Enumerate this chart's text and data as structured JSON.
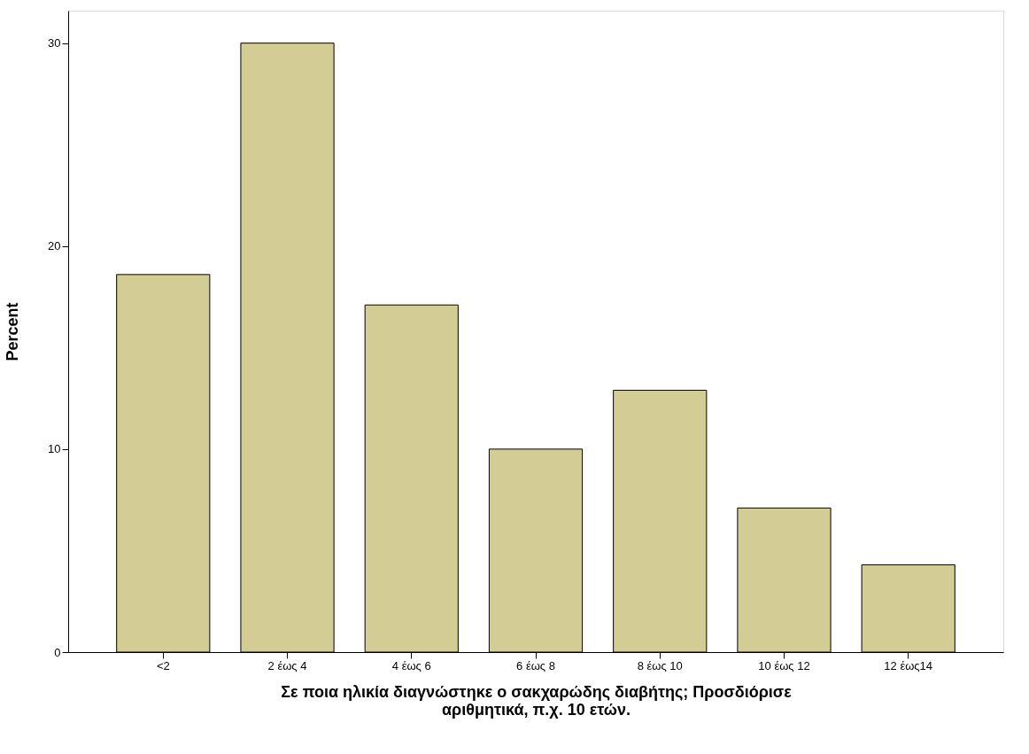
{
  "chart_data": {
    "type": "bar",
    "categories": [
      "<2",
      "2 έως 4",
      "4 έως 6",
      "6 έως 8",
      "8 έως 10",
      "10 έως 12",
      "12 έως14"
    ],
    "values": [
      18.6,
      30,
      17.1,
      10,
      12.9,
      7.1,
      4.3
    ],
    "color": "#d3cd95",
    "xlabel": "Σε ποια ηλικία διαγνώστηκε ο σακχαρώδης διαβήτης; Προσδιόρισε αριθμητικά, π.χ. 10 ετών.",
    "ylabel": "Percent",
    "ylim": [
      0,
      31.6
    ],
    "yticks": [
      0,
      10,
      20,
      30
    ],
    "grid": false
  }
}
